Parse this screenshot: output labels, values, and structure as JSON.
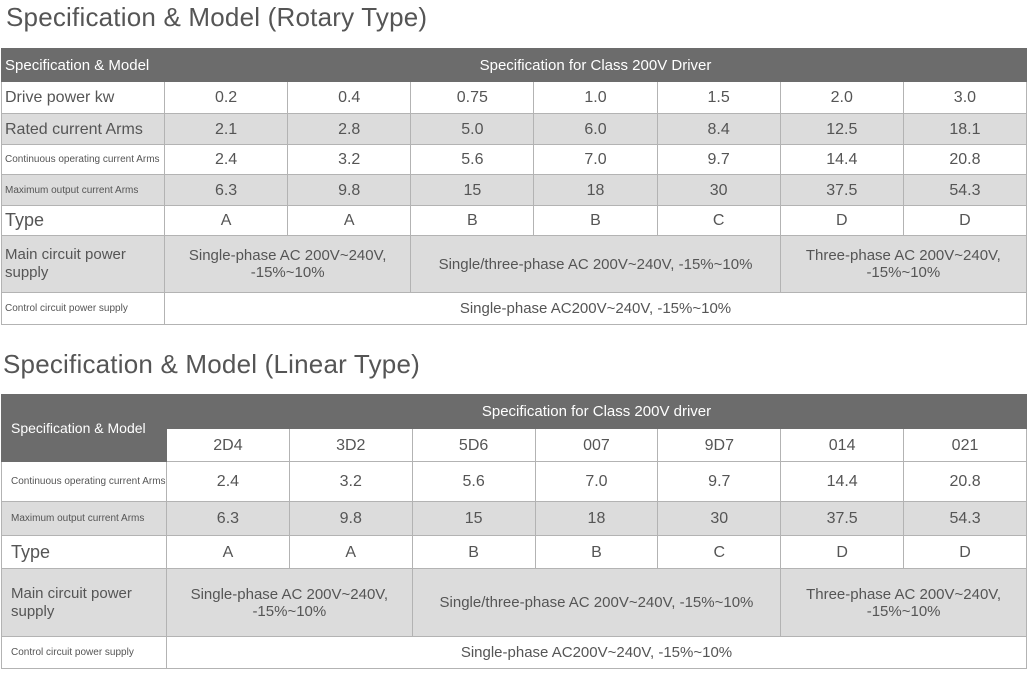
{
  "rotary": {
    "title": "Specification & Model (Rotary Type)",
    "header_label": "Specification & Model",
    "header_span": "Specification for Class 200V Driver",
    "rows": {
      "drive_power": {
        "label": "Drive power kw",
        "values": [
          "0.2",
          "0.4",
          "0.75",
          "1.0",
          "1.5",
          "2.0",
          "3.0"
        ]
      },
      "rated_current": {
        "label": "Rated current Arms",
        "values": [
          "2.1",
          "2.8",
          "5.0",
          "6.0",
          "8.4",
          "12.5",
          "18.1"
        ]
      },
      "continuous_current": {
        "label": "Continuous operating current Arms",
        "values": [
          "2.4",
          "3.2",
          "5.6",
          "7.0",
          "9.7",
          "14.4",
          "20.8"
        ]
      },
      "max_output_current": {
        "label": "Maximum output current Arms",
        "values": [
          "6.3",
          "9.8",
          "15",
          "18",
          "30",
          "37.5",
          "54.3"
        ]
      },
      "type": {
        "label": "Type",
        "values": [
          "A",
          "A",
          "B",
          "B",
          "C",
          "D",
          "D"
        ]
      },
      "main_power": {
        "label": "Main circuit power supply",
        "groups": [
          "Single-phase AC 200V~240V, -15%~10%",
          "Single/three-phase AC 200V~240V, -15%~10%",
          "Three-phase AC 200V~240V, -15%~10%"
        ]
      },
      "control_power": {
        "label": "Control circuit power supply",
        "value": "Single-phase AC200V~240V, -15%~10%"
      }
    }
  },
  "linear": {
    "title": "Specification & Model (Linear Type)",
    "header_label": "Specification & Model",
    "header_span": "Specification for Class 200V driver",
    "models": [
      "2D4",
      "3D2",
      "5D6",
      "007",
      "9D7",
      "014",
      "021"
    ],
    "rows": {
      "continuous_current": {
        "label": "Continuous operating current Arms",
        "values": [
          "2.4",
          "3.2",
          "5.6",
          "7.0",
          "9.7",
          "14.4",
          "20.8"
        ]
      },
      "max_output_current": {
        "label": "Maximum output current Arms",
        "values": [
          "6.3",
          "9.8",
          "15",
          "18",
          "30",
          "37.5",
          "54.3"
        ]
      },
      "type": {
        "label": "Type",
        "values": [
          "A",
          "A",
          "B",
          "B",
          "C",
          "D",
          "D"
        ]
      },
      "main_power": {
        "label": "Main circuit power supply",
        "groups": [
          "Single-phase AC 200V~240V, -15%~10%",
          "Single/three-phase AC 200V~240V, -15%~10%",
          "Three-phase AC 200V~240V, -15%~10%"
        ]
      },
      "control_power": {
        "label": "Control circuit power supply",
        "value": "Single-phase AC200V~240V, -15%~10%"
      }
    }
  }
}
